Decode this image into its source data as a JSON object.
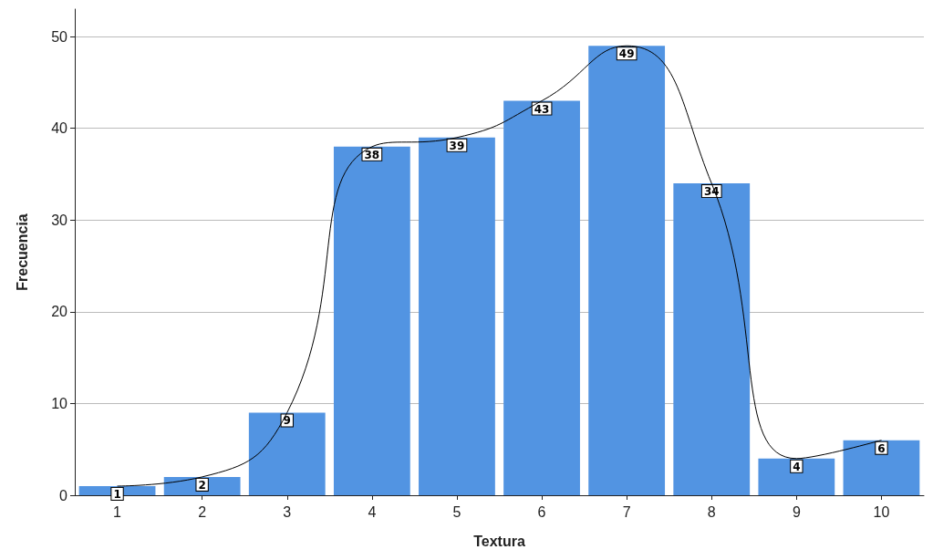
{
  "chart_data": {
    "type": "bar",
    "xlabel": "Textura",
    "ylabel": "Frecuencia",
    "categories": [
      "1",
      "2",
      "3",
      "4",
      "5",
      "6",
      "7",
      "8",
      "9",
      "10"
    ],
    "series": [
      {
        "color": "#5294e2",
        "values": [
          1,
          2,
          9,
          38,
          39,
          43,
          49,
          34,
          4,
          6
        ]
      },
      {
        "type": "line",
        "color": "#000000",
        "values": [
          1,
          2,
          9,
          38,
          39,
          43,
          49,
          34,
          4,
          6
        ],
        "value_labels": [
          null,
          null,
          null,
          null,
          null,
          null,
          null,
          null,
          null,
          null
        ]
      }
    ],
    "ylim": [
      0,
      53
    ],
    "yticks": [
      0,
      10,
      20,
      30,
      40,
      50
    ],
    "grid": "y",
    "data_labels": true,
    "marker": "none",
    "line_style": "solid"
  }
}
